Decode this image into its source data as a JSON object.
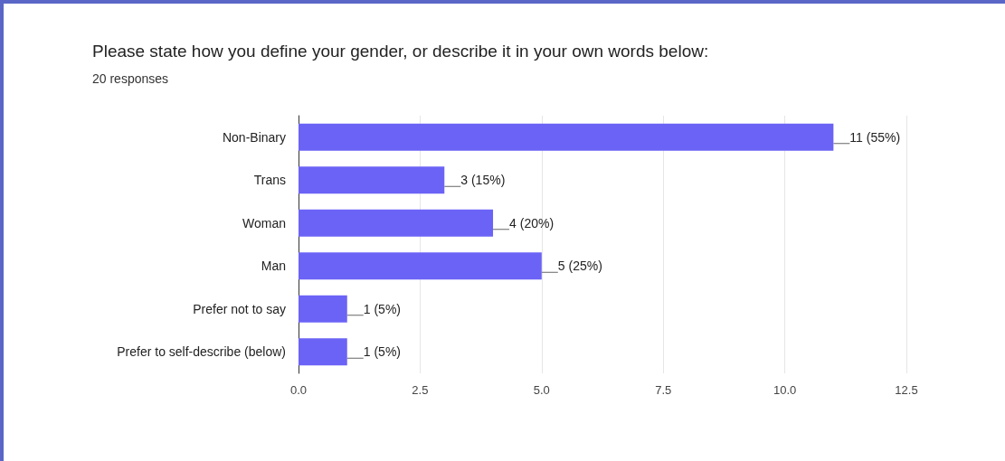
{
  "chart_data": {
    "type": "bar",
    "orientation": "horizontal",
    "title": "Please state how you define your gender, or describe it in your own words below:",
    "subtitle": "20 responses",
    "categories": [
      "Non-Binary",
      "Trans",
      "Woman",
      "Man",
      "Prefer not to say",
      "Prefer to self-describe (below)"
    ],
    "values": [
      11,
      3,
      4,
      5,
      1,
      1
    ],
    "value_labels": [
      "11 (55%)",
      "3 (15%)",
      "4 (20%)",
      "5 (25%)",
      "1 (5%)",
      "1 (5%)"
    ],
    "color": "#6b63f6",
    "xlim": [
      0,
      12.5
    ],
    "xticks": [
      {
        "value": 0,
        "label": "0.0"
      },
      {
        "value": 2.5,
        "label": "2.5"
      },
      {
        "value": 5,
        "label": "5.0"
      },
      {
        "value": 7.5,
        "label": "7.5"
      },
      {
        "value": 10,
        "label": "10.0"
      },
      {
        "value": 12.5,
        "label": "12.5"
      }
    ],
    "grid": "x"
  }
}
